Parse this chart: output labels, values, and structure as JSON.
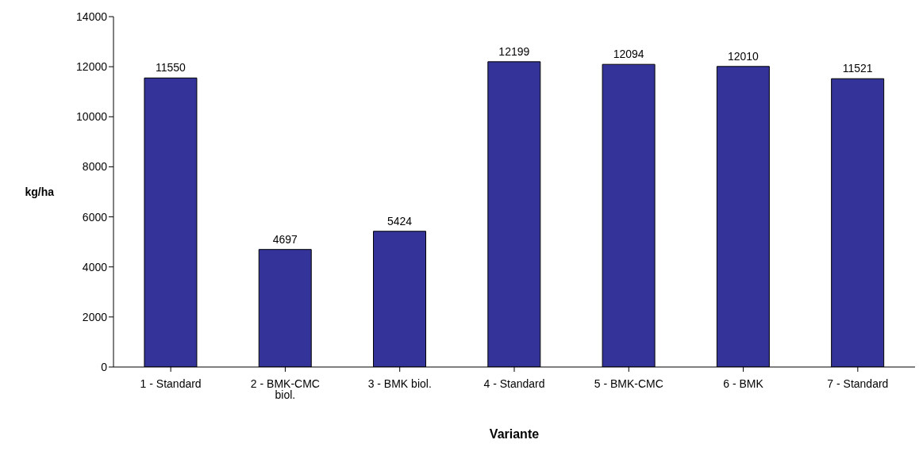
{
  "chart_data": {
    "type": "bar",
    "xlabel": "Variante",
    "ylabel": "kg/ha",
    "categories": [
      "1 - Standard",
      "2 - BMK-CMC biol.",
      "3 - BMK biol.",
      "4 - Standard",
      "5 - BMK-CMC",
      "6 - BMK",
      "7 - Standard"
    ],
    "values": [
      11550,
      4697,
      5424,
      12199,
      12094,
      12010,
      11521
    ],
    "color": "#333399",
    "ylim": [
      0,
      14000
    ],
    "yticks": [
      0,
      2000,
      4000,
      6000,
      8000,
      10000,
      12000,
      14000
    ],
    "data_labels": true,
    "grid": false,
    "legend": false
  }
}
